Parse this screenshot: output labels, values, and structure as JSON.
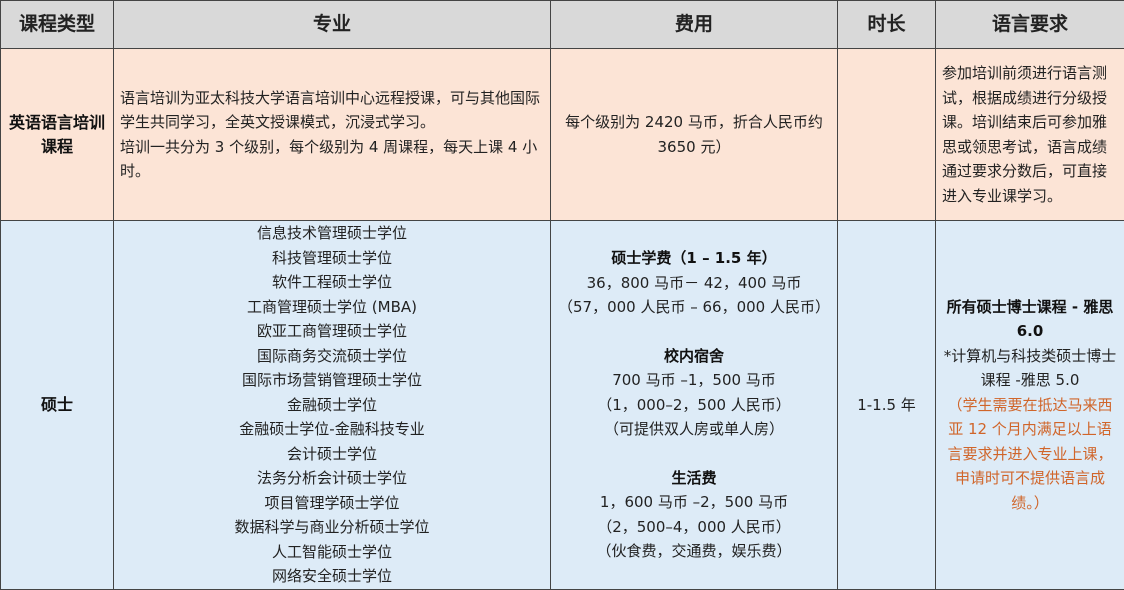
{
  "headers": [
    "课程类型",
    "专业",
    "费用",
    "时长",
    "语言要求"
  ],
  "colors": {
    "header_bg": "#d9d9d9",
    "row1_bg": "#fce4d6",
    "row2_bg": "#ddebf7",
    "note_text": "#d0652a"
  },
  "rows": [
    {
      "type": "英语语言培训课程",
      "major": [
        "语言培训为亚太科技大学语言培训中心远程授课，可与其他国际学生共同学习，全英文授课模式，沉浸式学习。",
        "培训一共分为 3 个级别，每个级别为 4 周课程，每天上课 4 小时。"
      ],
      "fee": "每个级别为 2420 马币，折合人民币约 3650 元）",
      "duration": "",
      "language": "参加培训前须进行语言测试，根据成绩进行分级授课。培训结束后可参加雅思或领思考试，语言成绩通过要求分数后，可直接进入专业课学习。"
    },
    {
      "type": "硕士",
      "majors": [
        "信息技术管理硕士学位",
        "科技管理硕士学位",
        "软件工程硕士学位",
        "工商管理硕士学位 (MBA)",
        "欧亚工商管理硕士学位",
        "国际商务交流硕士学位",
        "国际市场营销管理硕士学位",
        "金融硕士学位",
        "金融硕士学位-金融科技专业",
        "会计硕士学位",
        "法务分析会计硕士学位",
        "项目管理学硕士学位",
        "数据科学与商业分析硕士学位",
        "人工智能硕士学位",
        "网络安全硕士学位"
      ],
      "fees": [
        {
          "title": "硕士学费（1  –  1.5 年）",
          "lines": [
            "36，800 马币－ 42，400 马币",
            "（57，000 人民币 – 66，000 人民币）"
          ]
        },
        {
          "title": "校内宿舍",
          "lines": [
            "700 马币 –1，500 马币",
            "（1，000–2，500 人民币）",
            "（可提供双人房或单人房）"
          ]
        },
        {
          "title": "生活费",
          "lines": [
            "1，600 马币 –2，500 马币",
            "（2，500–4，000 人民币）",
            "（伙食费，交通费，娱乐费）"
          ]
        }
      ],
      "duration": "1-1.5 年",
      "language_bold": "所有硕士博士课程 - 雅思 6.0",
      "language_note": "*计算机与科技类硕士博士课程 -雅思 5.0",
      "language_orange": "（学生需要在抵达马来西亚 12 个月内满足以上语言要求并进入专业上课，申请时可不提供语言成绩。）"
    }
  ]
}
